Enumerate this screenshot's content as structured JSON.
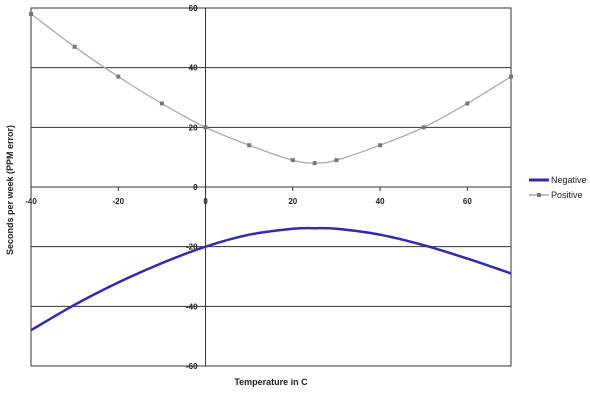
{
  "chart_data": {
    "type": "line",
    "title": "",
    "xlabel": "Temperature in C",
    "ylabel": "Seconds per week (PPM error)",
    "xlim": [
      -40,
      70
    ],
    "ylim": [
      -60,
      60
    ],
    "x_ticks": [
      "-40",
      "-20",
      "0",
      "20",
      "40",
      "60"
    ],
    "y_ticks": [
      "60",
      "40",
      "20",
      "0",
      "-20",
      "-40",
      "-60"
    ],
    "grid": "horizontal",
    "legend": "right",
    "series": [
      {
        "name": "Negative",
        "color": "#2b2bb8",
        "marker": "none",
        "x": [
          -40,
          -30,
          -20,
          -10,
          0,
          10,
          20,
          25,
          30,
          40,
          50,
          60,
          70
        ],
        "y": [
          -48,
          -39.5,
          -32,
          -25.5,
          -20,
          -16,
          -14,
          -13.8,
          -14,
          -16,
          -19.5,
          -24,
          -29
        ]
      },
      {
        "name": "Positive",
        "color": "#aaaaaa",
        "marker": "square",
        "x": [
          -40,
          -30,
          -20,
          -10,
          0,
          10,
          20,
          25,
          30,
          40,
          50,
          60,
          70
        ],
        "y": [
          58,
          47,
          37,
          28,
          20,
          14,
          9,
          8,
          9,
          14,
          20,
          28,
          37
        ]
      }
    ]
  }
}
